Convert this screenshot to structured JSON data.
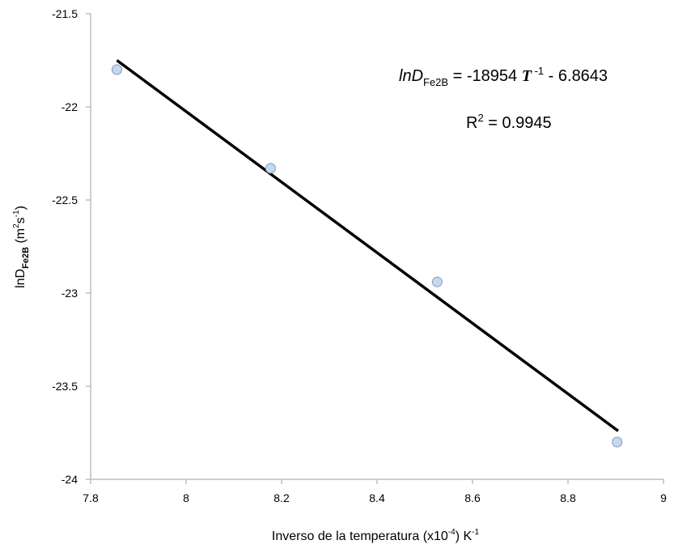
{
  "chart_data": {
    "type": "scatter",
    "xlabel": {
      "main": "Inverso de la temperatura (x10",
      "exp": "-4",
      "after": ") K",
      "unit_exp": "-1"
    },
    "ylabel": {
      "main": "lnD",
      "sub": "Fe2B",
      "unit": " (m",
      "unit_exp1": "2",
      "unit_mid": "s",
      "unit_exp2": "-1",
      "unit_end": ")"
    },
    "xlim": [
      7.8,
      9
    ],
    "ylim": [
      -24,
      -21.5
    ],
    "xticks": [
      7.8,
      8,
      8.2,
      8.4,
      8.6,
      8.8,
      9
    ],
    "yticks": [
      -24,
      -23.5,
      -23,
      -22.5,
      -22,
      -21.5
    ],
    "xtick_labels": [
      "7.8",
      "8",
      "8.2",
      "8.4",
      "8.6",
      "8.8",
      "9"
    ],
    "ytick_labels": [
      "-24",
      "-23.5",
      "-23",
      "-22.5",
      "-22",
      "-21.5"
    ],
    "grid": false,
    "legend": "none",
    "series": [
      {
        "points": [
          {
            "x": 7.855,
            "y": -21.8
          },
          {
            "x": 8.177,
            "y": -22.33
          },
          {
            "x": 8.526,
            "y": -22.94
          },
          {
            "x": 8.903,
            "y": -23.8
          }
        ],
        "marker_fill": "#c5d9ec",
        "marker_stroke": "#7f9bb8"
      }
    ],
    "trendline": {
      "x": [
        7.855,
        8.905
      ],
      "y": [
        -21.75,
        -23.74
      ],
      "color": "#000000"
    },
    "annotations": {
      "equation": {
        "lhs": "lnD",
        "lhs_sub": "Fe2B",
        "mid": " = -18954 ",
        "var": "T",
        "var_exp": " -1",
        "rhs": " - 6.8643"
      },
      "r2": {
        "pre": "R",
        "exp": "2",
        "post": " = 0.9945"
      }
    },
    "colors": {
      "axis": "#bfbfbf",
      "text": "#000000"
    }
  }
}
